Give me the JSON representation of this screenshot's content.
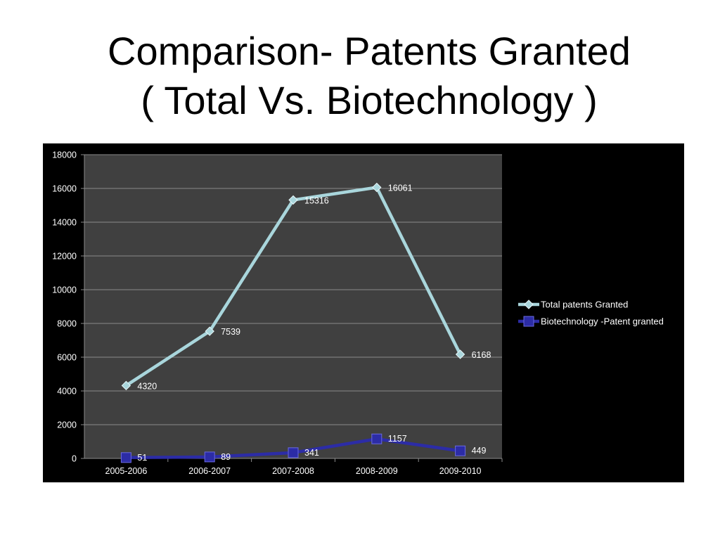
{
  "slide": {
    "title_line1": "Comparison- Patents Granted",
    "title_line2": "( Total Vs. Biotechnology )"
  },
  "chart_data": {
    "type": "line",
    "categories": [
      "2005-2006",
      "2006-2007",
      "2007-2008",
      "2008-2009",
      "2009-2010"
    ],
    "series": [
      {
        "name": "Total patents Granted",
        "values": [
          4320,
          7539,
          15316,
          16061,
          6168
        ],
        "color": "#a9d6dc",
        "marker": "diamond"
      },
      {
        "name": "Biotechnology -Patent granted",
        "values": [
          51,
          89,
          341,
          1157,
          449
        ],
        "color": "#2c2ca6",
        "marker": "square"
      }
    ],
    "ylim": [
      0,
      18000
    ],
    "yticks": [
      "0",
      "2000",
      "4000",
      "6000",
      "8000",
      "10000",
      "12000",
      "14000",
      "16000",
      "18000"
    ],
    "grid": true,
    "legend": "right",
    "data_labels": true,
    "plot_background": "#404040",
    "chart_background": "#000000"
  }
}
